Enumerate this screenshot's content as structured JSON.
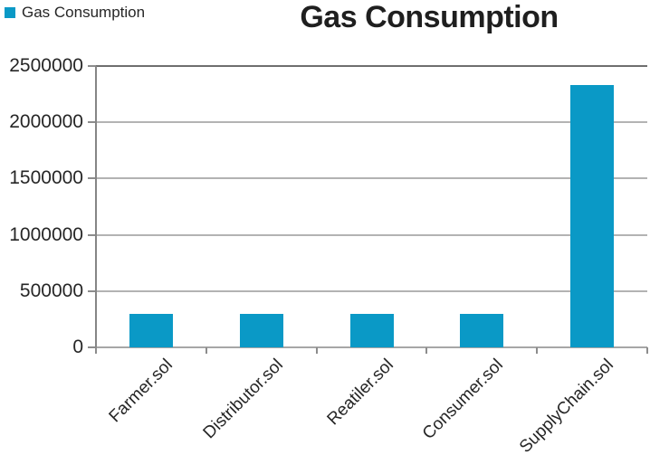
{
  "legend": {
    "label": "Gas Consumption"
  },
  "chart_data": {
    "type": "bar",
    "title": "Gas Consumption",
    "series_name": "Gas Consumption",
    "categories": [
      "Farmer.sol",
      "Distributor.sol",
      "Reatiler.sol",
      "Consumer.sol",
      "SupplyChain.sol"
    ],
    "values": [
      300000,
      300000,
      300000,
      300000,
      2330000
    ],
    "xlabel": "",
    "ylabel": "",
    "ylim": [
      0,
      2500000
    ],
    "yticks": [
      0,
      500000,
      1000000,
      1500000,
      2000000,
      2500000
    ],
    "ytick_labels": [
      "0",
      "500000",
      "1000000",
      "1500000",
      "2000000",
      "2500000"
    ],
    "grid": true,
    "legend_position": "top-left",
    "colors": {
      "bar": "#0a99c6",
      "gridline": "#b3b3b3",
      "gridline_top": "#6f6f6f",
      "x_axis": "#a6a6a6",
      "y_axis": "#858585",
      "tick": "#8c8c8c",
      "title_text": "#1f1f1f",
      "label_text": "#262626",
      "background": "#ffffff"
    }
  }
}
